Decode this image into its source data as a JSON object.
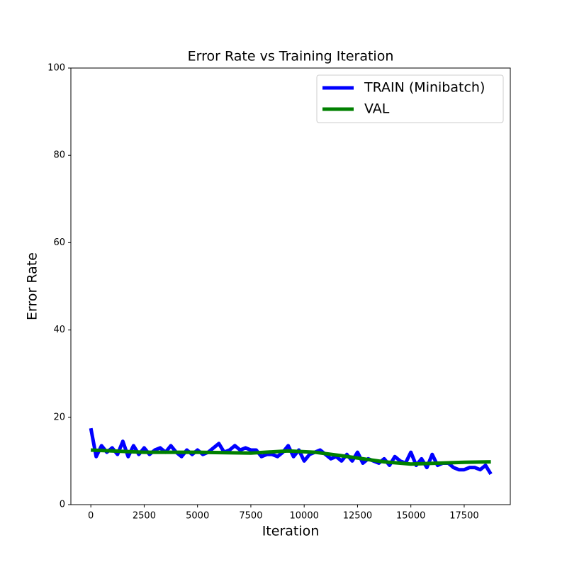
{
  "chart_data": {
    "type": "line",
    "title": "Error Rate vs Training Iteration",
    "x_label": "Iteration",
    "y_label": "Error Rate",
    "xlim": [
      -936,
      19661
    ],
    "ylim": [
      0,
      100
    ],
    "xticks": [
      0,
      2500,
      5000,
      7500,
      10000,
      12500,
      15000,
      17500
    ],
    "yticks": [
      0,
      20,
      40,
      60,
      80,
      100
    ],
    "legend": "upper right",
    "series": [
      {
        "name": "TRAIN (Minibatch)",
        "color": "#0000ff",
        "x": [
          0,
          250,
          500,
          750,
          1000,
          1250,
          1500,
          1750,
          2000,
          2250,
          2500,
          2750,
          3000,
          3250,
          3500,
          3750,
          4000,
          4250,
          4500,
          4750,
          5000,
          5250,
          5500,
          5750,
          6000,
          6250,
          6500,
          6750,
          7000,
          7250,
          7500,
          7750,
          8000,
          8250,
          8500,
          8750,
          9000,
          9250,
          9500,
          9750,
          10000,
          10250,
          10500,
          10750,
          11000,
          11250,
          11500,
          11750,
          12000,
          12250,
          12500,
          12750,
          13000,
          13250,
          13500,
          13750,
          14000,
          14250,
          14500,
          14750,
          15000,
          15250,
          15500,
          15750,
          16000,
          16250,
          16500,
          16750,
          17000,
          17250,
          17500,
          17750,
          18000,
          18250,
          18500,
          18750
        ],
        "values": [
          17.5,
          11,
          13.5,
          12,
          13,
          11.5,
          14.5,
          11,
          13.5,
          11.5,
          13,
          11.5,
          12.5,
          13,
          12,
          13.5,
          12,
          11,
          12.5,
          11.5,
          12.5,
          11.5,
          12,
          13,
          14,
          12,
          12.5,
          13.5,
          12.5,
          13,
          12.5,
          12.5,
          11,
          11.5,
          11.5,
          11,
          12,
          13.5,
          11,
          12.5,
          10,
          11.5,
          12,
          12.5,
          11.5,
          10.5,
          11,
          10,
          11.5,
          10,
          12,
          9.5,
          10.5,
          10,
          9.5,
          10.5,
          9,
          11,
          10,
          9.5,
          12,
          9,
          10.5,
          8.5,
          11.5,
          9,
          9.5,
          9.5,
          8.5,
          8,
          8,
          8.5,
          8.5,
          8,
          9,
          7
        ]
      },
      {
        "name": "VAL",
        "color": "#008000",
        "x": [
          0,
          2500,
          5000,
          7500,
          9250,
          10500,
          11750,
          13750,
          15000,
          16250,
          17500,
          18750
        ],
        "values": [
          12.5,
          12,
          12,
          11.8,
          12.3,
          12,
          11.2,
          9.8,
          9.3,
          9.5,
          9.7,
          9.8
        ]
      }
    ]
  }
}
